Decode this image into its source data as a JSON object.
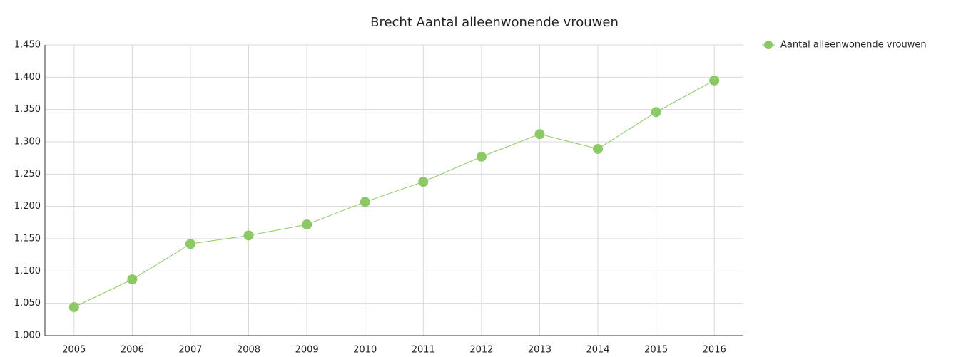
{
  "chart_data": {
    "type": "line",
    "title": "Brecht  Aantal alleenwonende vrouwen",
    "categories": [
      "2005",
      "2006",
      "2007",
      "2008",
      "2009",
      "2010",
      "2011",
      "2012",
      "2013",
      "2014",
      "2015",
      "2016"
    ],
    "series": [
      {
        "name": "Aantal alleenwonende vrouwen",
        "color": "#8cc864",
        "values": [
          1044,
          1087,
          1142,
          1155,
          1172,
          1207,
          1238,
          1277,
          1312,
          1289,
          1346,
          1395
        ]
      }
    ],
    "ylim": [
      1000,
      1450
    ],
    "yticks": [
      {
        "value": 1000,
        "label": "1.000"
      },
      {
        "value": 1050,
        "label": "1.050"
      },
      {
        "value": 1100,
        "label": "1.100"
      },
      {
        "value": 1150,
        "label": "1.150"
      },
      {
        "value": 1200,
        "label": "1.200"
      },
      {
        "value": 1250,
        "label": "1.250"
      },
      {
        "value": 1300,
        "label": "1.300"
      },
      {
        "value": 1350,
        "label": "1.350"
      },
      {
        "value": 1400,
        "label": "1.400"
      },
      {
        "value": 1450,
        "label": "1.450"
      }
    ],
    "grid": true,
    "legend": "top-right"
  }
}
